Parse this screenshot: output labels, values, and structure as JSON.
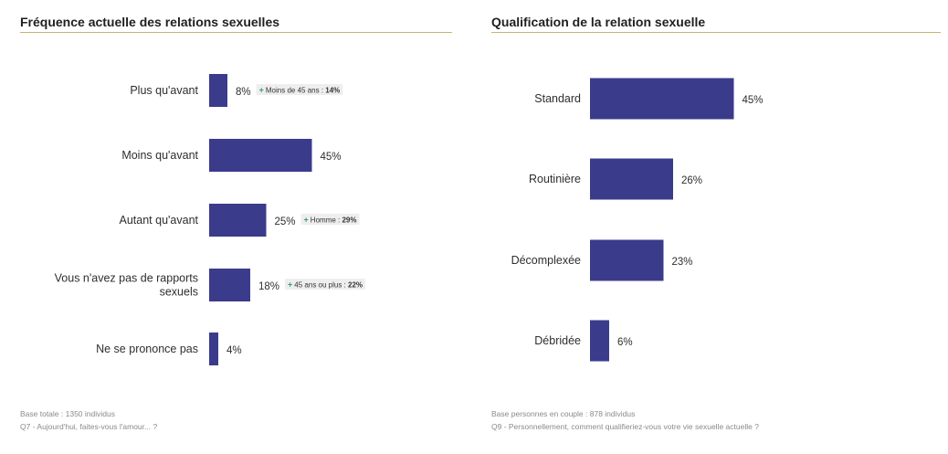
{
  "colors": {
    "bar": "#3b3b8c",
    "rule": "#c9b274",
    "tag_bg": "#eeeeee",
    "plus": "#3aa06a"
  },
  "left": {
    "title": "Fréquence actuelle des relations sexuelles",
    "footnote_base": "Base totale : 1350 individus",
    "footnote_question": "Q7 - Aujourd'hui, faites-vous l'amour... ?"
  },
  "right": {
    "title": "Qualification de la relation sexuelle",
    "footnote_base": "Base personnes en couple : 878 individus",
    "footnote_question": "Q9 - Personnellement, comment qualifieriez-vous votre vie sexuelle actuelle ?"
  },
  "chart_data": [
    {
      "type": "bar",
      "orientation": "horizontal",
      "title": "Fréquence actuelle des relations sexuelles",
      "unit": "%",
      "categories": [
        "Plus qu'avant",
        "Moins qu'avant",
        "Autant qu'avant",
        "Vous n'avez pas de rapports sexuels",
        "Ne se prononce pas"
      ],
      "category_lines": [
        [
          "Plus qu'avant"
        ],
        [
          "Moins qu'avant"
        ],
        [
          "Autant qu'avant"
        ],
        [
          "Vous n'avez pas de rapports",
          "sexuels"
        ],
        [
          "Ne se prononce pas"
        ]
      ],
      "values": [
        8,
        45,
        25,
        18,
        4
      ],
      "value_labels": [
        "8%",
        "45%",
        "25%",
        "18%",
        "4%"
      ],
      "annotations": [
        {
          "plus": "+",
          "label": "Moins de 45 ans : ",
          "value": "14%"
        },
        null,
        {
          "plus": "+",
          "label": "Homme : ",
          "value": "29%"
        },
        {
          "plus": "+",
          "label": "45 ans ou plus : ",
          "value": "22%"
        },
        null
      ]
    },
    {
      "type": "bar",
      "orientation": "horizontal",
      "title": "Qualification de la relation sexuelle",
      "unit": "%",
      "categories": [
        "Standard",
        "Routinière",
        "Décomplexée",
        "Débridée"
      ],
      "category_lines": [
        [
          "Standard"
        ],
        [
          "Routinière"
        ],
        [
          "Décomplexée"
        ],
        [
          "Débridée"
        ]
      ],
      "values": [
        45,
        26,
        23,
        6
      ],
      "value_labels": [
        "45%",
        "26%",
        "23%",
        "6%"
      ],
      "annotations": [
        null,
        null,
        null,
        null
      ]
    }
  ]
}
